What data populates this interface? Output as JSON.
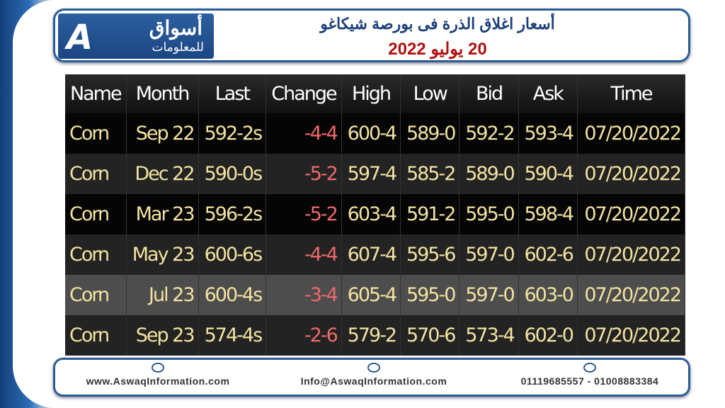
{
  "header": {
    "logo_title": "أسواق",
    "logo_subtitle": "للمعلومات",
    "title": "أسعار اغلاق الذرة فى بورصة شيكاغو",
    "date": "20 يوليو 2022"
  },
  "table": {
    "columns": [
      "Name",
      "Month",
      "Last",
      "Change",
      "High",
      "Low",
      "Bid",
      "Ask",
      "Time"
    ],
    "rows": [
      [
        "Corn",
        "Sep 22",
        "592-2s",
        "-4-4",
        "600-4",
        "589-0",
        "592-2",
        "593-4",
        "07/20/2022"
      ],
      [
        "Corn",
        "Dec 22",
        "590-0s",
        "-5-2",
        "597-4",
        "585-2",
        "589-0",
        "590-4",
        "07/20/2022"
      ],
      [
        "Corn",
        "Mar 23",
        "596-2s",
        "-5-2",
        "603-4",
        "591-2",
        "595-0",
        "598-4",
        "07/20/2022"
      ],
      [
        "Corn",
        "May 23",
        "600-6s",
        "-4-4",
        "607-4",
        "595-6",
        "597-0",
        "602-6",
        "07/20/2022"
      ],
      [
        "Corn",
        "Jul 23",
        "600-4s",
        "-3-4",
        "605-4",
        "595-0",
        "597-0",
        "603-0",
        "07/20/2022"
      ],
      [
        "Corn",
        "Sep 23",
        "574-4s",
        "-2-6",
        "579-2",
        "570-6",
        "573-4",
        "602-0",
        "07/20/2022"
      ]
    ]
  },
  "footer": {
    "website": "www.AswaqInformation.com",
    "email": "Info@AswaqInformation.com",
    "phones": "01119685557 - 01008883384"
  }
}
